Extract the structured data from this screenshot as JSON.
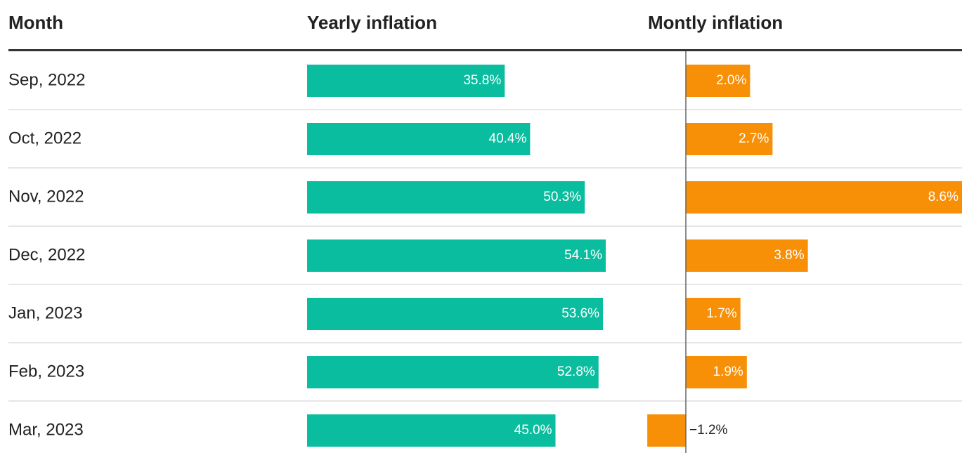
{
  "chart_data": {
    "type": "bar",
    "headers": [
      "Month",
      "Yearly inflation",
      "Montly inflation"
    ],
    "categories": [
      "Sep, 2022",
      "Oct, 2022",
      "Nov, 2022",
      "Dec, 2022",
      "Jan, 2023",
      "Feb, 2023",
      "Mar, 2023"
    ],
    "series": [
      {
        "name": "Yearly inflation",
        "color": "#0bbd9f",
        "values": [
          35.8,
          40.4,
          50.3,
          54.1,
          53.6,
          52.8,
          45.0
        ],
        "value_labels": [
          "35.8%",
          "40.4%",
          "50.3%",
          "54.1%",
          "53.6%",
          "52.8%",
          "45.0%"
        ]
      },
      {
        "name": "Montly inflation",
        "color": "#f78f07",
        "values": [
          2.0,
          2.7,
          8.6,
          3.8,
          1.7,
          1.9,
          -1.2
        ],
        "value_labels": [
          "2.0%",
          "2.7%",
          "8.6%",
          "3.8%",
          "1.7%",
          "1.9%",
          "−1.2%"
        ]
      }
    ]
  }
}
